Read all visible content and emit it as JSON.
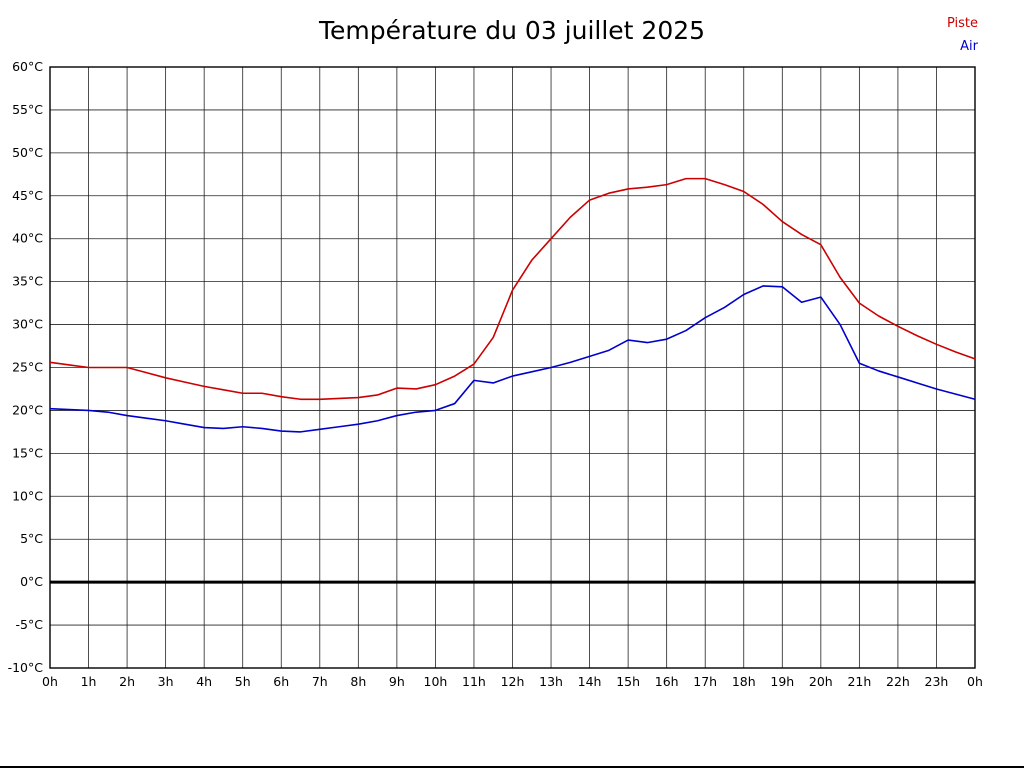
{
  "title": "Température du 03 juillet 2025",
  "chart_data": {
    "type": "line",
    "title": "Température du 03 juillet 2025",
    "xlabel": "",
    "ylabel": "",
    "ylim": [
      -10,
      60
    ],
    "x_range": [
      0,
      24
    ],
    "x_step": 0.5,
    "grid": true,
    "legend_position": "top-right",
    "zero_line_value": 0,
    "ytick_values": [
      60,
      55,
      50,
      45,
      40,
      35,
      30,
      25,
      20,
      15,
      10,
      5,
      0,
      -5,
      -10
    ],
    "ytick_labels": [
      "60°C",
      "55°C",
      "50°C",
      "45°C",
      "40°C",
      "35°C",
      "30°C",
      "25°C",
      "20°C",
      "15°C",
      "10°C",
      "5°C",
      "0°C",
      "-5°C",
      "-10°C"
    ],
    "xtick_labels": [
      "0h",
      "1h",
      "2h",
      "3h",
      "4h",
      "5h",
      "6h",
      "7h",
      "8h",
      "9h",
      "10h",
      "11h",
      "12h",
      "13h",
      "14h",
      "15h",
      "16h",
      "17h",
      "18h",
      "19h",
      "20h",
      "21h",
      "22h",
      "23h",
      "0h"
    ],
    "series": [
      {
        "name": "Piste",
        "color": "#cc0000",
        "values": [
          25.6,
          25.3,
          25.0,
          25.0,
          25.0,
          24.4,
          23.8,
          23.3,
          22.8,
          22.4,
          22.0,
          22.0,
          21.6,
          21.3,
          21.3,
          21.4,
          21.5,
          21.8,
          22.6,
          22.5,
          23.0,
          24.0,
          25.4,
          28.5,
          34.0,
          37.5,
          40.0,
          42.5,
          44.5,
          45.3,
          45.8,
          46.0,
          46.3,
          47.0,
          47.0,
          46.3,
          45.5,
          44.0,
          42.0,
          40.5,
          39.3,
          35.5,
          32.5,
          31.0,
          29.8,
          28.7,
          27.7,
          26.8,
          26.0
        ]
      },
      {
        "name": "Air",
        "color": "#0000cc",
        "values": [
          20.2,
          20.1,
          20.0,
          19.8,
          19.4,
          19.1,
          18.8,
          18.4,
          18.0,
          17.9,
          18.1,
          17.9,
          17.6,
          17.5,
          17.8,
          18.1,
          18.4,
          18.8,
          19.4,
          19.8,
          20.0,
          20.8,
          23.5,
          23.2,
          24.0,
          24.5,
          25.0,
          25.6,
          26.3,
          27.0,
          28.2,
          27.9,
          28.3,
          29.3,
          30.8,
          32.0,
          33.5,
          34.5,
          34.4,
          32.6,
          33.2,
          30.0,
          25.5,
          24.6,
          23.9,
          23.2,
          22.5,
          21.9,
          21.3
        ]
      }
    ]
  },
  "legend": {
    "piste_label": "Piste",
    "air_label": "Air"
  }
}
